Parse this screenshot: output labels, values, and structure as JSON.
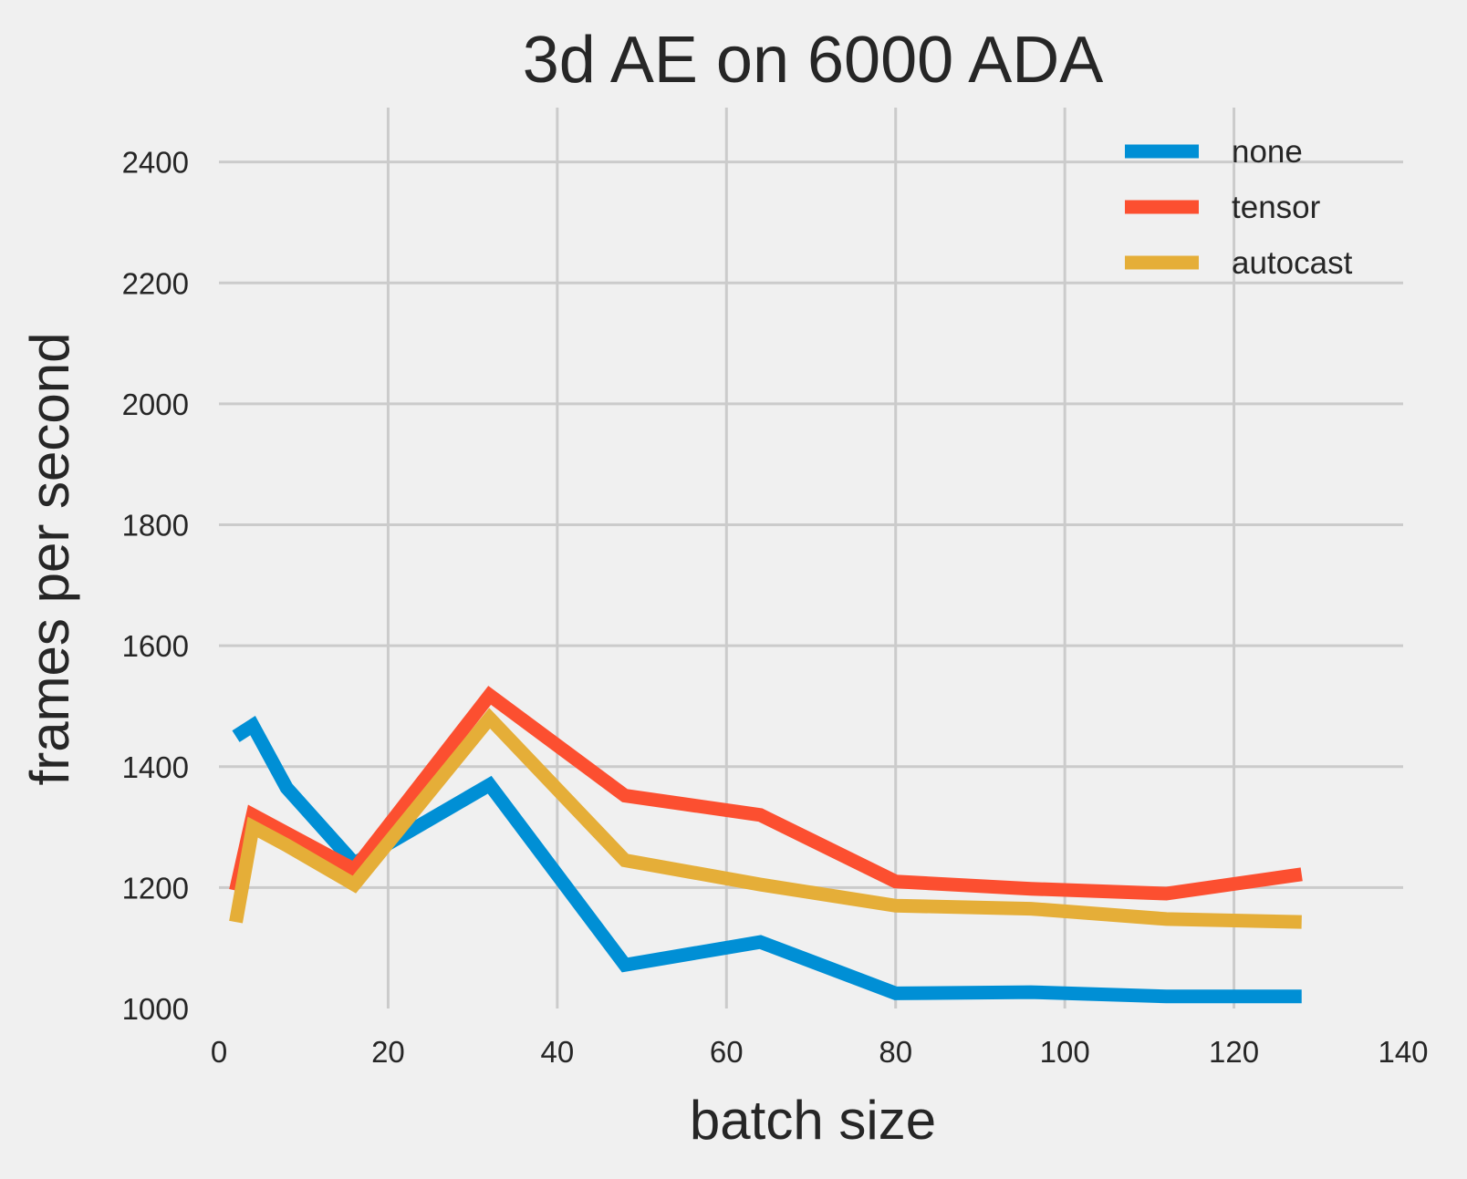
{
  "chart_data": {
    "type": "line",
    "title": "3d AE on 6000 ADA",
    "xlabel": "batch size",
    "ylabel": "frames per second",
    "xlim": [
      0,
      140
    ],
    "ylim": [
      1000,
      2490
    ],
    "xticks": [
      "0",
      "20",
      "40",
      "60",
      "80",
      "100",
      "120",
      "140"
    ],
    "yticks": [
      "1000",
      "1200",
      "1400",
      "1600",
      "1800",
      "2000",
      "2200",
      "2400"
    ],
    "grid": true,
    "legend_position": "top-right",
    "x": [
      2,
      4,
      8,
      16,
      32,
      48,
      64,
      80,
      96,
      112,
      128
    ],
    "series": [
      {
        "name": "none",
        "color": "#008fd5",
        "values": [
          1450,
          1468,
          1365,
          1240,
          1370,
          1072,
          1110,
          1025,
          1027,
          1020,
          1020
        ]
      },
      {
        "name": "tensor",
        "color": "#fc4f30",
        "values": [
          1195,
          1320,
          1290,
          1230,
          1518,
          1352,
          1320,
          1210,
          1198,
          1190,
          1222
        ]
      },
      {
        "name": "autocast",
        "color": "#e5ae38",
        "values": [
          1143,
          1300,
          1270,
          1205,
          1480,
          1245,
          1205,
          1170,
          1165,
          1148,
          1143
        ]
      }
    ]
  }
}
